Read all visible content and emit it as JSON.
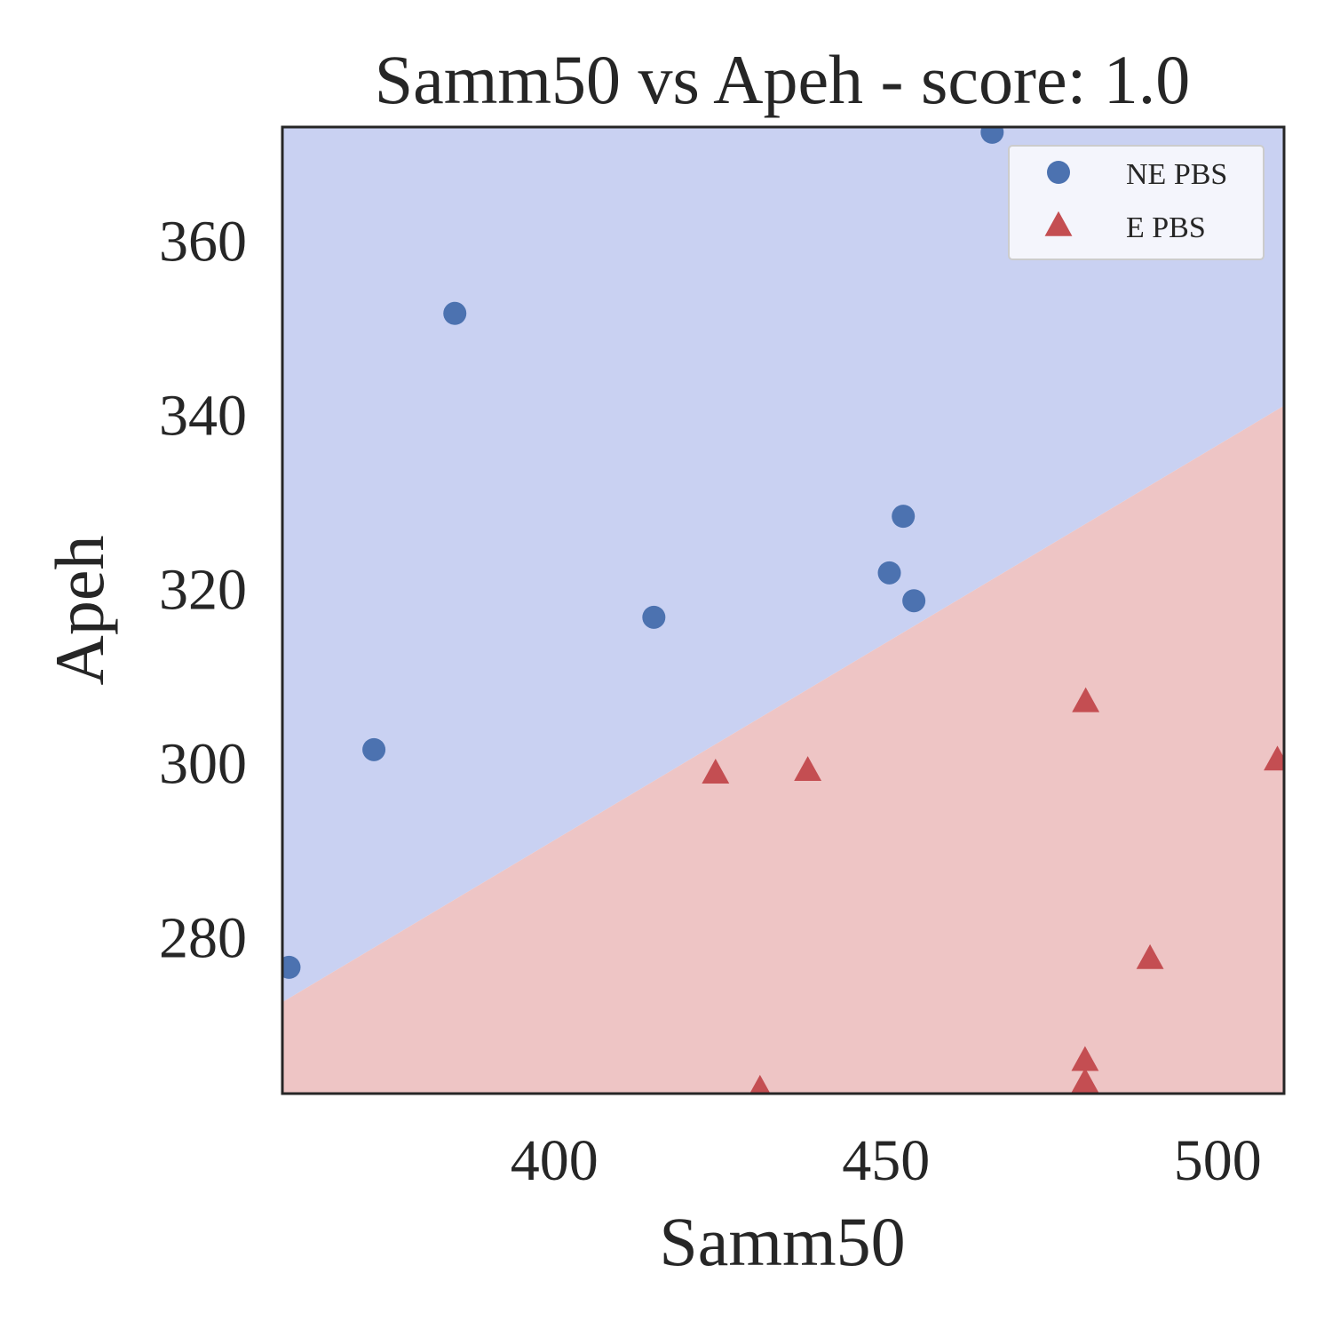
{
  "chart_data": {
    "type": "scatter",
    "title": "Samm50 vs Apeh - score: 1.0",
    "xlabel": "Samm50",
    "ylabel": "Apeh",
    "xlim": [
      359,
      510
    ],
    "ylim": [
      262,
      373
    ],
    "xticks": [
      400,
      450,
      500
    ],
    "yticks": [
      280,
      300,
      320,
      340,
      360
    ],
    "grid": false,
    "legend_placement": "top-right",
    "decision_boundary": {
      "points": [
        [
          359,
          272.5
        ],
        [
          510,
          341.0
        ]
      ],
      "above_region_color": "#c9d1f2",
      "below_region_color": "#eec5c5"
    },
    "series": [
      {
        "name": "NE PBS",
        "marker": "circle",
        "color": "#4c72b0",
        "points": [
          [
            360,
            276.5
          ],
          [
            372.8,
            301.5
          ],
          [
            385,
            351.6
          ],
          [
            415,
            316.7
          ],
          [
            450.5,
            321.8
          ],
          [
            452.6,
            328.3
          ],
          [
            454.2,
            318.6
          ],
          [
            466,
            372.4
          ]
        ]
      },
      {
        "name": "E PBS",
        "marker": "triangle",
        "color": "#c44e52",
        "points": [
          [
            424.3,
            298.8
          ],
          [
            438.2,
            299.1
          ],
          [
            431,
            262.5
          ],
          [
            480.1,
            307.0
          ],
          [
            480,
            265.8
          ],
          [
            480,
            263.3
          ],
          [
            489.8,
            277.5
          ],
          [
            509,
            300.3
          ]
        ]
      }
    ]
  }
}
